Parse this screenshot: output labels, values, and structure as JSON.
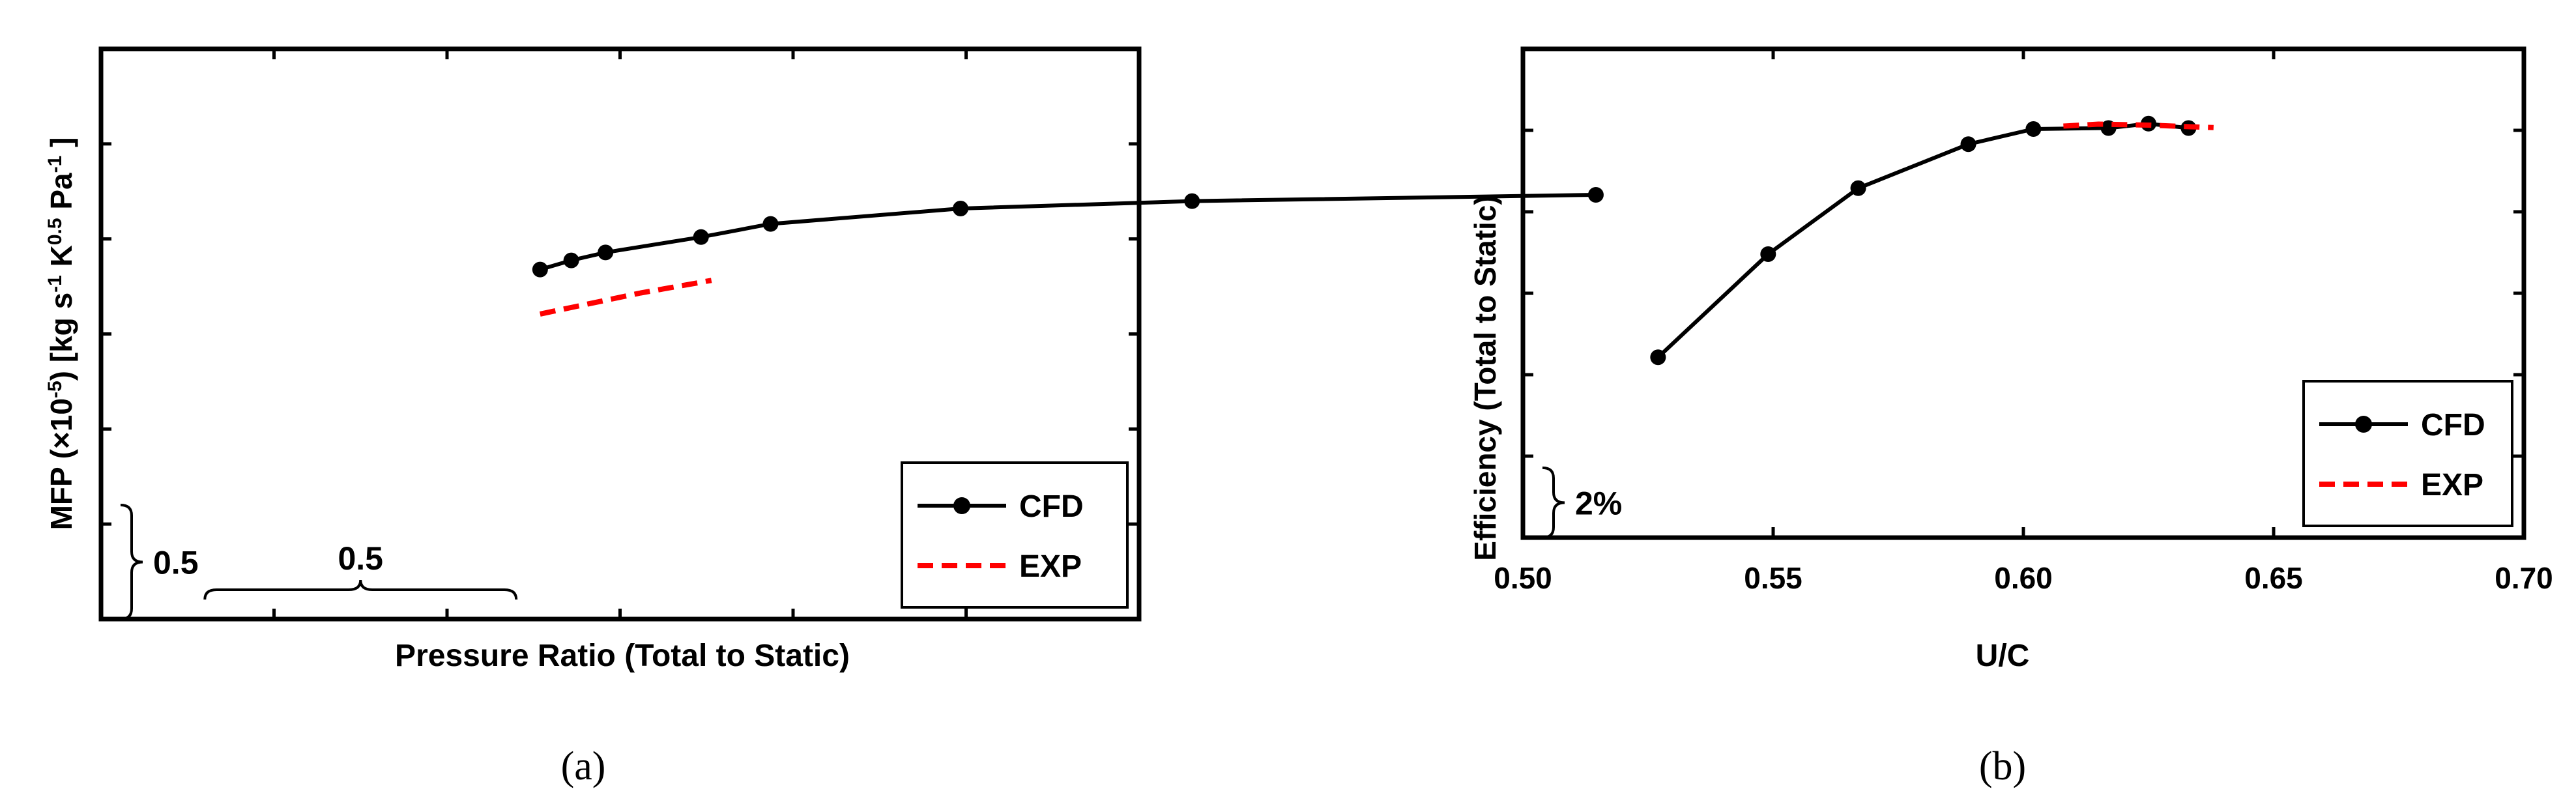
{
  "chart_data": [
    {
      "type": "line",
      "panel_label": "(a)",
      "xlabel": "Pressure Ratio (Total to Static)",
      "ylabel_parts": [
        "MFP (×10",
        "-5",
        ") [kg s",
        "-1",
        " K",
        "0.5",
        " Pa",
        "-1",
        " ]"
      ],
      "x_scale_bracket": "0.5",
      "y_scale_bracket": "0.5",
      "y_scale_bracket_fraction": 0.2,
      "x_scale_bracket_fraction": 0.3,
      "x_range_fraction": [
        0,
        1
      ],
      "y_range_fraction": [
        0,
        1
      ],
      "x_tick_count": 6,
      "y_tick_count": 6,
      "legend": {
        "placement": "bottom-right",
        "entries": [
          "CFD",
          "EXP"
        ]
      },
      "series": [
        {
          "name": "CFD",
          "style": "solid-markers",
          "color": "#000000",
          "x": [
            0.423,
            0.453,
            0.486,
            0.578,
            0.645,
            0.828,
            1.051,
            1.44
          ],
          "y": [
            0.613,
            0.629,
            0.643,
            0.67,
            0.693,
            0.72,
            0.733,
            0.744
          ]
        },
        {
          "name": "EXP",
          "style": "dashed",
          "color": "#ff0000",
          "x": [
            0.423,
            0.52,
            0.588
          ],
          "y": [
            0.535,
            0.572,
            0.594
          ]
        }
      ]
    },
    {
      "type": "line",
      "panel_label": "(b)",
      "xlabel": "U/C",
      "ylabel": "Efficiency (Total to Static)",
      "y_scale_bracket": "2%",
      "y_scale_bracket_fraction": 0.1429,
      "xlim": [
        0.5,
        0.7
      ],
      "x_ticks": [
        "0.50",
        "0.55",
        "0.60",
        "0.65",
        "0.70"
      ],
      "x_tick_values": [
        0.5,
        0.55,
        0.6,
        0.65,
        0.7
      ],
      "y_range_fraction": [
        0,
        1
      ],
      "y_tick_count": 6,
      "legend": {
        "placement": "bottom-right",
        "entries": [
          "CFD",
          "EXP"
        ]
      },
      "series": [
        {
          "name": "CFD",
          "style": "solid-markers",
          "color": "#000000",
          "x": [
            0.527,
            0.549,
            0.567,
            0.589,
            0.602,
            0.617,
            0.625,
            0.633
          ],
          "y": [
            0.369,
            0.58,
            0.715,
            0.805,
            0.836,
            0.838,
            0.847,
            0.838
          ]
        },
        {
          "name": "EXP",
          "style": "dashed",
          "color": "#ff0000",
          "x": [
            0.608,
            0.615,
            0.625,
            0.638
          ],
          "y": [
            0.842,
            0.846,
            0.844,
            0.839
          ]
        }
      ]
    }
  ]
}
